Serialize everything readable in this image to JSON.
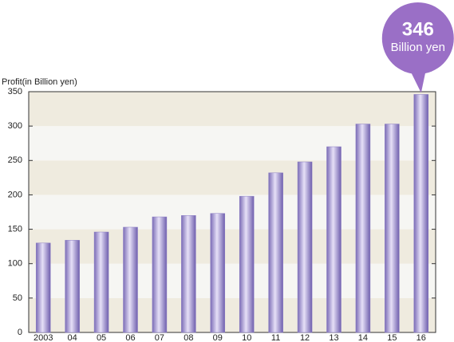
{
  "chart_data": {
    "type": "bar",
    "y_label": "Profit(in Billion yen)",
    "categories": [
      "2003",
      "04",
      "05",
      "06",
      "07",
      "08",
      "09",
      "10",
      "11",
      "12",
      "13",
      "14",
      "15",
      "16"
    ],
    "values": [
      130,
      134,
      146,
      153,
      168,
      170,
      173,
      198,
      232,
      248,
      270,
      303,
      303,
      346
    ],
    "annotation": "Billion yen",
    "color": "#8a7cc4",
    "bubble_color": "#9a6fc6",
    "ylim": [
      0,
      350
    ],
    "yticks": [
      0,
      50,
      100,
      150,
      200,
      250,
      300,
      350
    ],
    "grid": true
  }
}
